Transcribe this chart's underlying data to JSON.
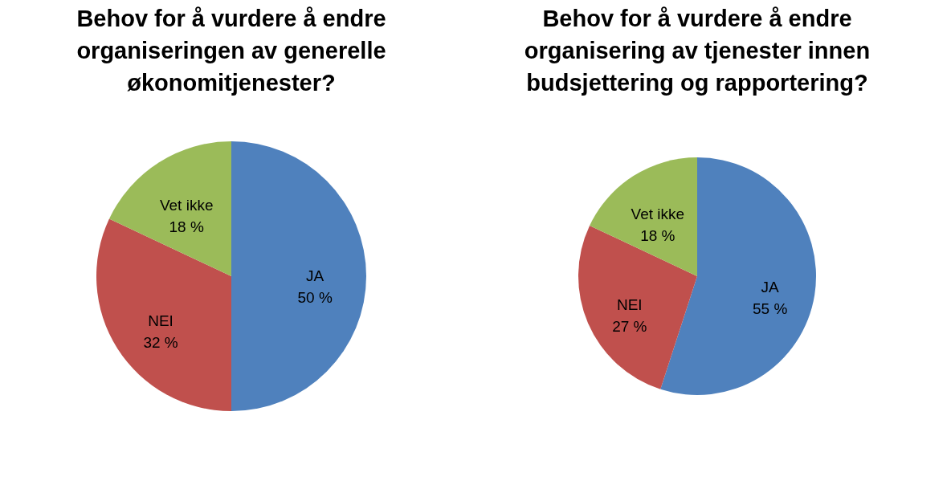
{
  "chart_data": [
    {
      "type": "pie",
      "title": "Behov for å vurdere å endre organiseringen av generelle økonomitjenester?",
      "categories": [
        "JA",
        "NEI",
        "Vet ikke"
      ],
      "values": [
        50,
        32,
        18
      ],
      "value_labels": [
        "50 %",
        "32 %",
        "18 %"
      ],
      "colors": [
        "#4f81bd",
        "#c0504d",
        "#9bbb59"
      ]
    },
    {
      "type": "pie",
      "title": "Behov for å vurdere å endre organisering av tjenester innen budsjettering og rapportering?",
      "categories": [
        "JA",
        "NEI",
        "Vet ikke"
      ],
      "values": [
        55,
        27,
        18
      ],
      "value_labels": [
        "55 %",
        "27 %",
        "18 %"
      ],
      "colors": [
        "#4f81bd",
        "#c0504d",
        "#9bbb59"
      ]
    }
  ]
}
